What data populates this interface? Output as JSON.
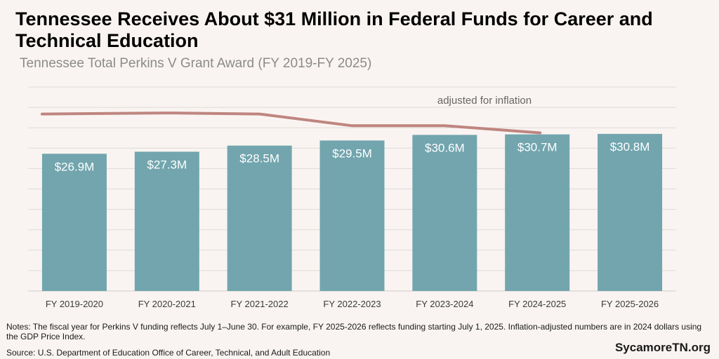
{
  "chart_data": {
    "type": "bar",
    "title": "Tennessee Receives About $31 Million in Federal Funds for Career and Technical Education",
    "subtitle": "Tennessee Total Perkins V Grant Award (FY 2019-FY 2025)",
    "categories": [
      "FY 2019-2020",
      "FY 2020-2021",
      "FY 2021-2022",
      "FY 2022-2023",
      "FY 2023-2024",
      "FY 2024-2025",
      "FY 2025-2026"
    ],
    "values": [
      26.9,
      27.3,
      28.5,
      29.5,
      30.6,
      30.7,
      30.8
    ],
    "value_labels": [
      "$26.9M",
      "$27.3M",
      "$28.5M",
      "$29.5M",
      "$30.6M",
      "$30.7M",
      "$30.8M"
    ],
    "inflation_adjusted": {
      "name": "adjusted for inflation",
      "values": [
        34.7,
        34.9,
        34.7,
        32.4,
        32.4,
        31.0
      ]
    },
    "ylim": [
      0,
      40
    ],
    "grid": true,
    "bar_color": "#72a5ae",
    "line_color": "#bf8580"
  },
  "notes": "Notes: The fiscal year for Perkins V funding reflects July 1–June 30. For example, FY 2025-2026 reflects funding starting July 1, 2025. Inflation-adjusted numbers are in 2024 dollars using the GDP Price Index.",
  "source": "Source: U.S. Department of Education Office of Career, Technical, and Adult Education",
  "brand": "SycamoreTN.org"
}
